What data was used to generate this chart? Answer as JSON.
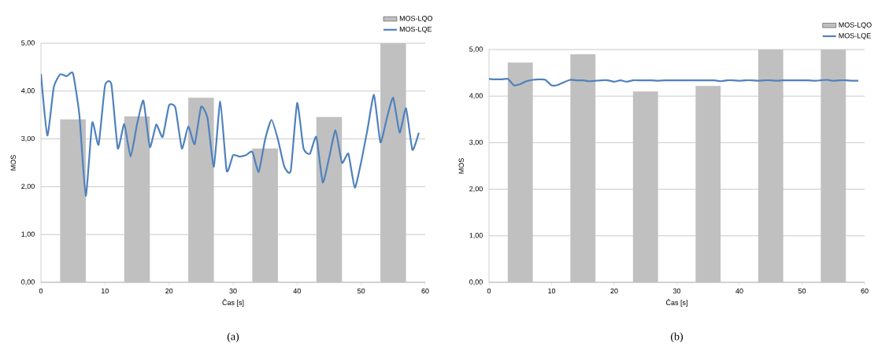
{
  "chart_data": [
    {
      "type": "bar",
      "xlabel": "Čas [s]",
      "ylabel": "MOS",
      "annotations": [
        "(a)"
      ],
      "xlim": [
        0,
        60
      ],
      "ylim": [
        0,
        5
      ],
      "xticks": [
        0,
        10,
        20,
        30,
        40,
        50,
        60
      ],
      "yticks": [
        {
          "value": 0,
          "label": "0,00"
        },
        {
          "value": 1,
          "label": "1,00"
        },
        {
          "value": 2,
          "label": "2,00"
        },
        {
          "value": 3,
          "label": "3,00"
        },
        {
          "value": 4,
          "label": "4,00"
        },
        {
          "value": 5,
          "label": "5,00"
        }
      ],
      "grid": "y",
      "legend": "top right",
      "series": [
        {
          "name": "MOS-LQO",
          "color": "#c0c0c0",
          "x": [
            5,
            15,
            25,
            35,
            45,
            55
          ],
          "values": [
            3.41,
            3.47,
            3.86,
            2.8,
            3.46,
            5.0
          ]
        },
        {
          "name": "MOS-LQE",
          "type": "line",
          "color": "#4f81bd",
          "x": [
            0,
            1,
            2,
            3,
            4,
            5,
            6,
            7,
            8,
            9,
            10,
            11,
            12,
            13,
            14,
            15,
            16,
            17,
            18,
            19,
            20,
            21,
            22,
            23,
            24,
            25,
            26,
            27,
            28,
            29,
            30,
            31,
            32,
            33,
            34,
            35,
            36,
            37,
            38,
            39,
            40,
            41,
            42,
            43,
            44,
            45,
            46,
            47,
            48,
            49,
            50,
            51,
            52,
            53,
            54,
            55,
            56,
            57,
            58,
            59
          ],
          "values": [
            4.36,
            3.07,
            4.08,
            4.35,
            4.31,
            4.37,
            3.5,
            1.81,
            3.34,
            2.88,
            4.11,
            4.14,
            2.8,
            3.31,
            2.63,
            3.3,
            3.8,
            2.83,
            3.3,
            3.04,
            3.7,
            3.65,
            2.8,
            3.26,
            2.89,
            3.67,
            3.44,
            2.42,
            3.78,
            2.33,
            2.66,
            2.63,
            2.66,
            2.73,
            2.31,
            2.99,
            3.4,
            2.99,
            2.42,
            2.33,
            3.75,
            2.8,
            2.69,
            3.04,
            2.09,
            2.61,
            3.18,
            2.5,
            2.69,
            1.98,
            2.52,
            3.21,
            3.92,
            2.93,
            3.43,
            3.86,
            3.13,
            3.64,
            2.77,
            3.13
          ]
        }
      ]
    },
    {
      "type": "bar",
      "xlabel": "Čas [s]",
      "ylabel": "MOS",
      "annotations": [
        "(b)"
      ],
      "xlim": [
        0,
        60
      ],
      "ylim": [
        0,
        5
      ],
      "xticks": [
        0,
        10,
        20,
        30,
        40,
        50,
        60
      ],
      "yticks": [
        {
          "value": 0,
          "label": "0,00"
        },
        {
          "value": 1,
          "label": "1,00"
        },
        {
          "value": 2,
          "label": "2,00"
        },
        {
          "value": 3,
          "label": "3,00"
        },
        {
          "value": 4,
          "label": "4,00"
        },
        {
          "value": 5,
          "label": "5,00"
        }
      ],
      "grid": "y",
      "legend": "top right",
      "series": [
        {
          "name": "MOS-LQO",
          "color": "#c0c0c0",
          "x": [
            5,
            15,
            25,
            35,
            45,
            55
          ],
          "values": [
            4.72,
            4.9,
            4.1,
            4.22,
            5.0,
            5.0
          ]
        },
        {
          "name": "MOS-LQE",
          "type": "line",
          "color": "#4f81bd",
          "x": [
            0,
            1,
            2,
            3,
            4,
            5,
            6,
            7,
            8,
            9,
            10,
            11,
            12,
            13,
            14,
            15,
            16,
            17,
            18,
            19,
            20,
            21,
            22,
            23,
            24,
            25,
            26,
            27,
            28,
            29,
            30,
            31,
            32,
            33,
            34,
            35,
            36,
            37,
            38,
            39,
            40,
            41,
            42,
            43,
            44,
            45,
            46,
            47,
            48,
            49,
            50,
            51,
            52,
            53,
            54,
            55,
            56,
            57,
            58,
            59
          ],
          "values": [
            4.37,
            4.36,
            4.36,
            4.37,
            4.23,
            4.26,
            4.32,
            4.35,
            4.36,
            4.35,
            4.23,
            4.24,
            4.3,
            4.35,
            4.34,
            4.34,
            4.32,
            4.33,
            4.34,
            4.34,
            4.31,
            4.34,
            4.31,
            4.34,
            4.34,
            4.34,
            4.34,
            4.33,
            4.34,
            4.34,
            4.34,
            4.34,
            4.34,
            4.34,
            4.34,
            4.34,
            4.34,
            4.32,
            4.34,
            4.34,
            4.33,
            4.34,
            4.34,
            4.33,
            4.34,
            4.34,
            4.33,
            4.34,
            4.34,
            4.34,
            4.34,
            4.34,
            4.33,
            4.34,
            4.35,
            4.33,
            4.34,
            4.34,
            4.33,
            4.33
          ]
        }
      ]
    }
  ]
}
